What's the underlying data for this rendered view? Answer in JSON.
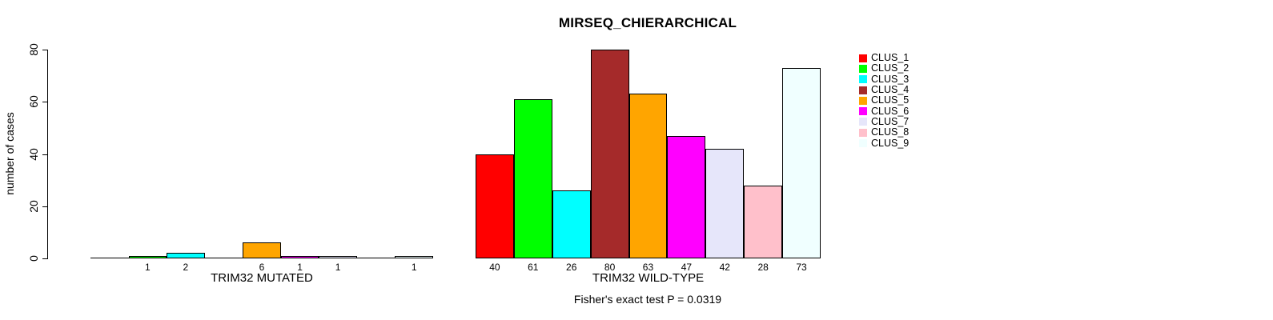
{
  "chart_data": {
    "type": "bar",
    "title": "MIRSEQ_CHIERARCHICAL",
    "ylabel": "number of cases",
    "xlabel": "",
    "ylim": [
      0,
      80
    ],
    "yticks": [
      0,
      20,
      40,
      60,
      80
    ],
    "grid": false,
    "legend_position": "right",
    "background": "#ffffff",
    "bar_border_color": "#000000",
    "legend": [
      {
        "label": "CLUS_1",
        "color": "#FF0000"
      },
      {
        "label": "CLUS_2",
        "color": "#00FF00"
      },
      {
        "label": "CLUS_3",
        "color": "#00FFFF"
      },
      {
        "label": "CLUS_4",
        "color": "#A52A2A"
      },
      {
        "label": "CLUS_5",
        "color": "#FFA500"
      },
      {
        "label": "CLUS_6",
        "color": "#FF00FF"
      },
      {
        "label": "CLUS_7",
        "color": "#E6E6FA"
      },
      {
        "label": "CLUS_8",
        "color": "#FFC0CB"
      },
      {
        "label": "CLUS_9",
        "color": "#F0FFFF"
      }
    ],
    "groups": [
      {
        "label": "TRIM32 MUTATED",
        "values": [
          0,
          1,
          2,
          0,
          6,
          1,
          1,
          0,
          1
        ]
      },
      {
        "label": "TRIM32 WILD-TYPE",
        "values": [
          40,
          61,
          26,
          80,
          63,
          47,
          42,
          28,
          73
        ]
      }
    ],
    "annotation": "Fisher's exact test P = 0.0319"
  }
}
